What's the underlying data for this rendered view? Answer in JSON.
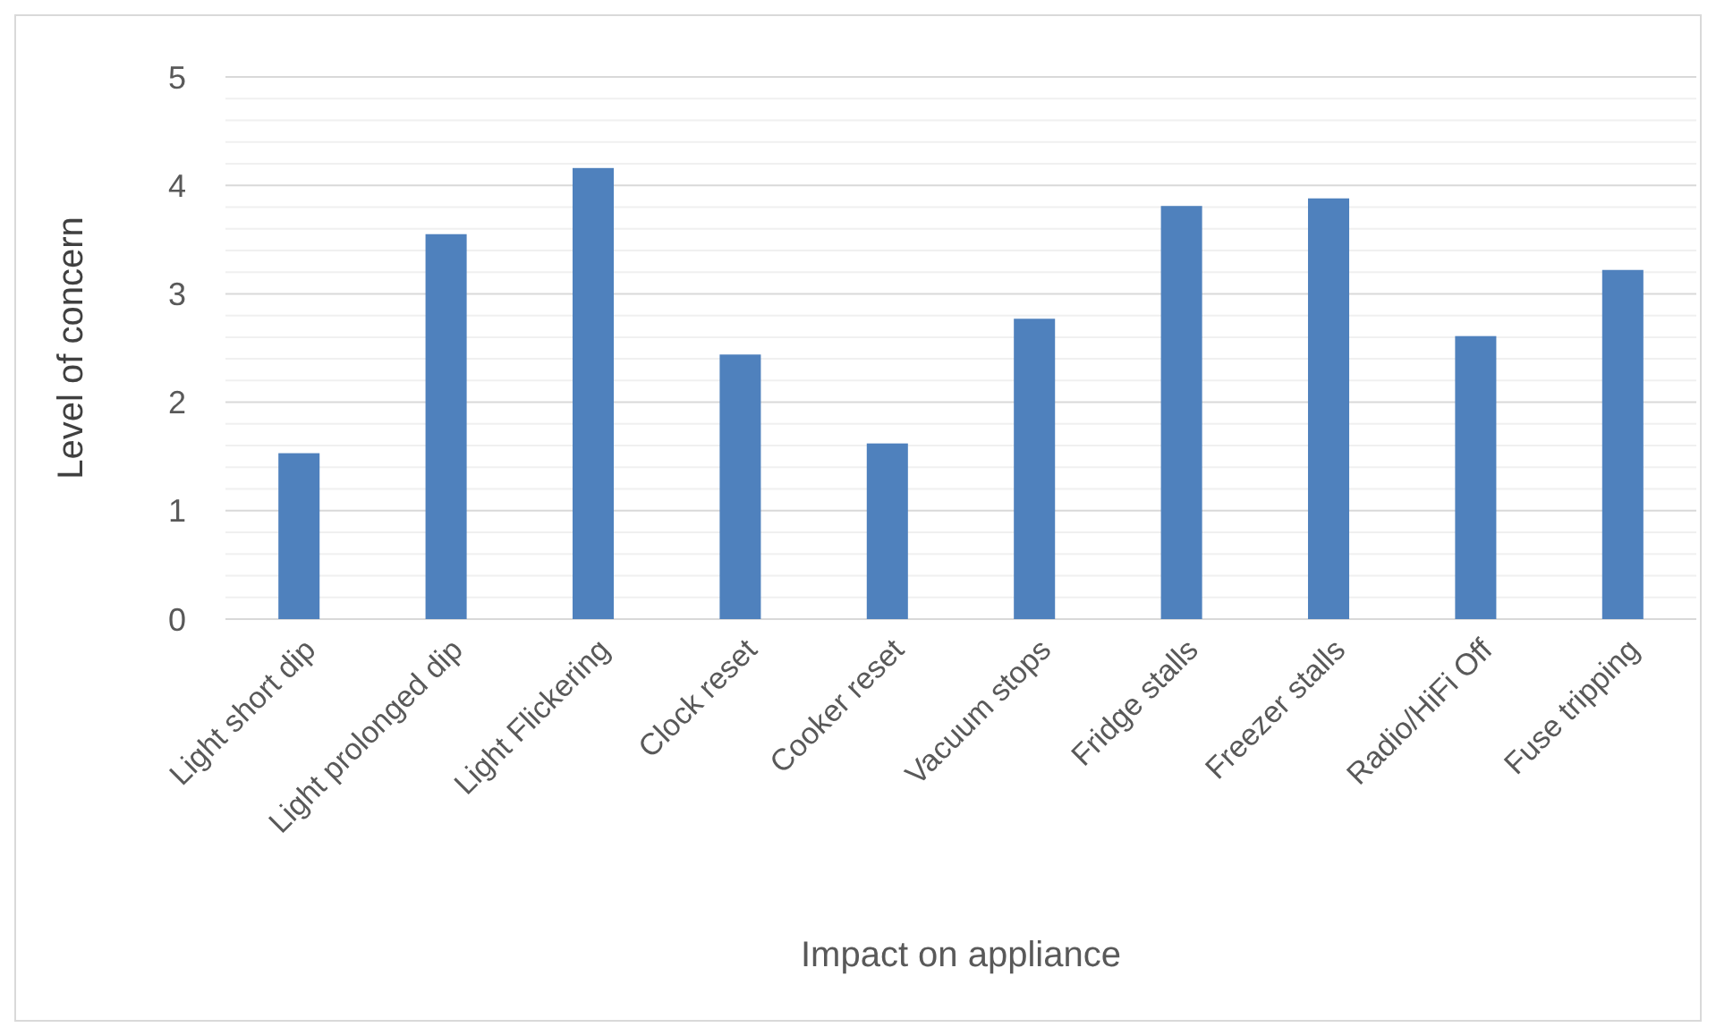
{
  "chart_data": {
    "type": "bar",
    "xlabel": "Impact on appliance",
    "ylabel": "Level of concern",
    "categories": [
      "Light short dip",
      "Light prolonged dip",
      "Light Flickering",
      "Clock reset",
      "Cooker reset",
      "Vacuum stops",
      "Fridge stalls",
      "Freezer stalls",
      "Radio/HiFi Off",
      "Fuse tripping"
    ],
    "values": [
      1.53,
      3.55,
      4.16,
      2.44,
      1.62,
      2.77,
      3.81,
      3.88,
      2.61,
      3.22
    ],
    "color": "#4f81bd",
    "ylim": [
      0,
      5
    ],
    "yticks": [
      0,
      {
        "value": 0.2,
        "label": null
      },
      {
        "value": 0.4,
        "label": null
      },
      {
        "value": 0.6,
        "label": null
      },
      {
        "value": 0.8,
        "label": null
      },
      1,
      {
        "value": 1.2,
        "label": null
      },
      {
        "value": 1.4,
        "label": null
      },
      {
        "value": 1.6,
        "label": null
      },
      {
        "value": 1.8,
        "label": null
      },
      2,
      {
        "value": 2.2,
        "label": null
      },
      {
        "value": 2.4,
        "label": null
      },
      {
        "value": 2.6,
        "label": null
      },
      {
        "value": 2.8,
        "label": null
      },
      3,
      {
        "value": 3.2,
        "label": null
      },
      {
        "value": 3.4,
        "label": null
      },
      {
        "value": 3.6,
        "label": null
      },
      {
        "value": 3.8,
        "label": null
      },
      4,
      {
        "value": 4.2,
        "label": null
      },
      {
        "value": 4.4,
        "label": null
      },
      {
        "value": 4.6,
        "label": null
      },
      {
        "value": 4.8,
        "label": null
      },
      5
    ],
    "grid": true
  }
}
